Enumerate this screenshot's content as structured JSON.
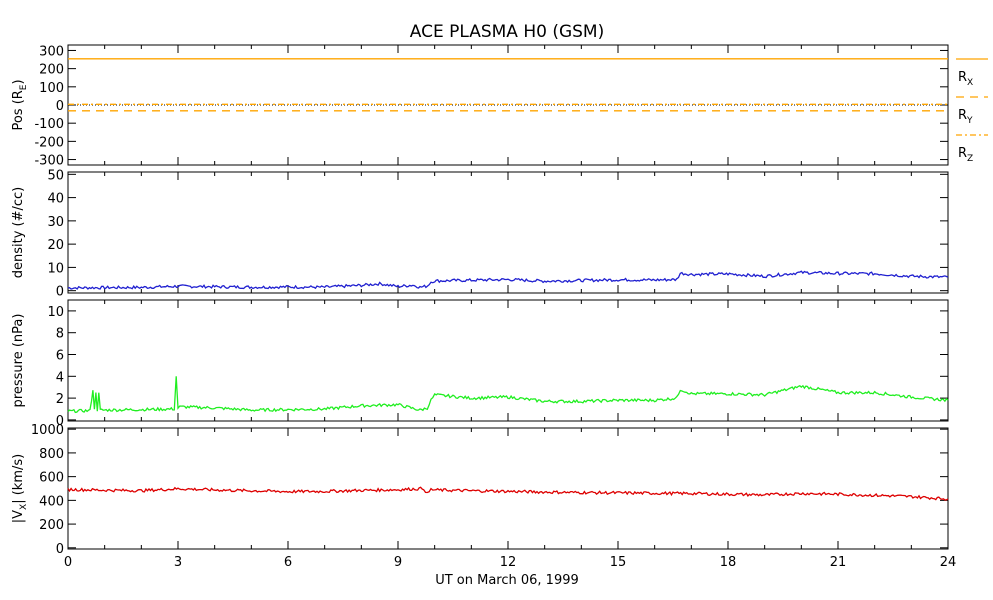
{
  "title": "ACE PLASMA H0 (GSM)",
  "xlabel": "UT on March 06, 1999",
  "x_ticks": [
    0,
    3,
    6,
    9,
    12,
    15,
    18,
    21,
    24
  ],
  "xlim": [
    0,
    24
  ],
  "chart_data": [
    {
      "type": "line",
      "ylabel": "Pos (R_E)",
      "ylabel_main": "Pos (R",
      "ylabel_sub": "E",
      "ylabel_end": ")",
      "ylim": [
        -330,
        330
      ],
      "y_ticks": [
        300,
        200,
        100,
        0,
        -100,
        -200,
        -300
      ],
      "series": [
        {
          "name": "R_X",
          "label_main": "R",
          "label_sub": "X",
          "color": "#ffa500",
          "dash": "",
          "x": [
            0,
            24
          ],
          "y": [
            254,
            254
          ]
        },
        {
          "name": "R_Y",
          "label_main": "R",
          "label_sub": "Y",
          "color": "#ffa500",
          "dash": "8,6",
          "x": [
            0,
            24
          ],
          "y": [
            -32,
            -32
          ]
        },
        {
          "name": "R_Z",
          "label_main": "R",
          "label_sub": "Z",
          "color": "#ffa500",
          "dash": "6,3,2,3",
          "x": [
            0,
            24
          ],
          "y": [
            4,
            4
          ]
        }
      ],
      "zero_line": true
    },
    {
      "type": "line",
      "ylabel": "density (#/cc)",
      "ylim": [
        -1,
        51
      ],
      "y_ticks": [
        50,
        40,
        30,
        20,
        10,
        0
      ],
      "series": [
        {
          "name": "density",
          "color": "#2020d0",
          "x": [
            0,
            1,
            2,
            3,
            4,
            5,
            6,
            7,
            8,
            8.5,
            9,
            9.4,
            9.6,
            9.8,
            9.9,
            10,
            11,
            12,
            13,
            14,
            15,
            16,
            16.6,
            16.7,
            17,
            18,
            19,
            20,
            21,
            22,
            23,
            24
          ],
          "y": [
            1.2,
            1.3,
            1.4,
            1.9,
            1.7,
            1.5,
            1.6,
            1.5,
            2.3,
            3.0,
            1.8,
            2.4,
            1.5,
            2.0,
            3.8,
            4.2,
            4.5,
            4.8,
            4.1,
            4.4,
            4.7,
            4.6,
            4.8,
            7.5,
            7.0,
            7.2,
            6.2,
            7.8,
            7.4,
            7.3,
            6.2,
            5.8
          ]
        }
      ]
    },
    {
      "type": "line",
      "ylabel": "pressure (nPa)",
      "ylim": [
        -0.1,
        11
      ],
      "y_ticks": [
        10,
        8,
        6,
        4,
        2,
        0
      ],
      "series": [
        {
          "name": "pressure",
          "color": "#20ee20",
          "x": [
            0,
            0.6,
            0.68,
            0.72,
            0.76,
            0.8,
            0.84,
            0.88,
            1.0,
            2.0,
            2.9,
            2.95,
            3.0,
            3.05,
            3.1,
            4,
            5,
            6,
            7,
            8,
            9,
            9.6,
            9.8,
            9.9,
            10,
            11,
            12,
            13,
            14,
            15,
            16,
            16.6,
            16.7,
            17,
            18,
            19,
            20,
            21,
            22,
            23,
            24
          ],
          "y": [
            0.8,
            0.85,
            2.8,
            0.9,
            2.6,
            0.9,
            2.4,
            0.9,
            0.9,
            0.95,
            1.0,
            4.0,
            1.1,
            1.2,
            1.2,
            1.1,
            0.9,
            0.95,
            1.0,
            1.3,
            1.4,
            0.9,
            1.1,
            1.8,
            2.3,
            2.0,
            2.1,
            1.7,
            1.7,
            1.8,
            1.8,
            2.0,
            2.8,
            2.4,
            2.4,
            2.3,
            3.1,
            2.5,
            2.5,
            2.1,
            1.8
          ]
        }
      ]
    },
    {
      "type": "line",
      "ylabel": "|V_X| (km/s)",
      "ylabel_main": "|V",
      "ylabel_sub": "X",
      "ylabel_end": "| (km/s)",
      "ylim": [
        -10,
        1010
      ],
      "y_ticks": [
        1000,
        800,
        600,
        400,
        200,
        0
      ],
      "series": [
        {
          "name": "|V_X|",
          "color": "#dd0000",
          "x": [
            0,
            1,
            2,
            3,
            4,
            5,
            6,
            7,
            8,
            9,
            9.7,
            9.8,
            9.9,
            10,
            11,
            12,
            13,
            14,
            15,
            16,
            17,
            18,
            19,
            20,
            21,
            22,
            23,
            24
          ],
          "y": [
            492,
            486,
            482,
            498,
            488,
            481,
            474,
            476,
            484,
            490,
            500,
            455,
            492,
            488,
            481,
            476,
            470,
            466,
            463,
            460,
            458,
            452,
            446,
            458,
            452,
            443,
            432,
            412
          ]
        }
      ]
    }
  ]
}
